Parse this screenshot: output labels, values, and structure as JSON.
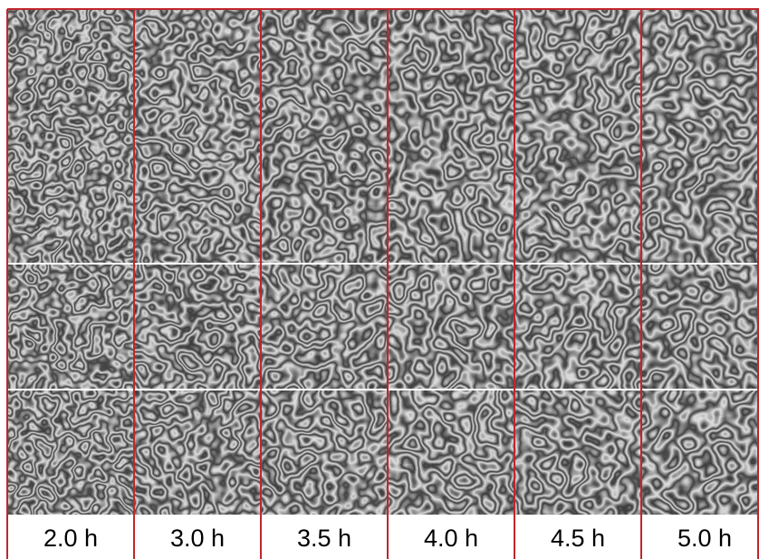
{
  "labels": [
    "2.0 h",
    "3.0 h",
    "3.5 h",
    "4.0 h",
    "4.5 h",
    "5.0 h"
  ]
}
